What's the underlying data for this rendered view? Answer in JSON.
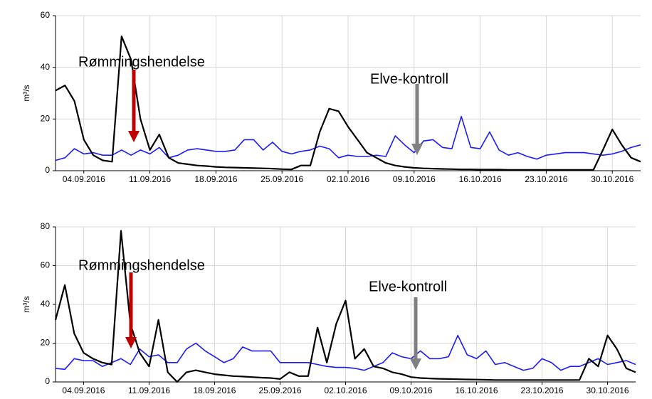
{
  "chart_data": [
    {
      "type": "line",
      "ylabel": "m³/s",
      "x": [
        "2016-09-01",
        "2016-09-02",
        "2016-09-03",
        "2016-09-04",
        "2016-09-05",
        "2016-09-06",
        "2016-09-07",
        "2016-09-08",
        "2016-09-09",
        "2016-09-10",
        "2016-09-11",
        "2016-09-12",
        "2016-09-13",
        "2016-09-14",
        "2016-09-15",
        "2016-09-16",
        "2016-09-17",
        "2016-09-18",
        "2016-09-19",
        "2016-09-20",
        "2016-09-21",
        "2016-09-22",
        "2016-09-23",
        "2016-09-24",
        "2016-09-25",
        "2016-09-26",
        "2016-09-27",
        "2016-09-28",
        "2016-09-29",
        "2016-09-30",
        "2016-10-01",
        "2016-10-02",
        "2016-10-03",
        "2016-10-04",
        "2016-10-05",
        "2016-10-06",
        "2016-10-07",
        "2016-10-08",
        "2016-10-09",
        "2016-10-10",
        "2016-10-11",
        "2016-10-12",
        "2016-10-13",
        "2016-10-14",
        "2016-10-15",
        "2016-10-16",
        "2016-10-17",
        "2016-10-18",
        "2016-10-19",
        "2016-10-20",
        "2016-10-21",
        "2016-10-22",
        "2016-10-23",
        "2016-10-24",
        "2016-10-25",
        "2016-10-26",
        "2016-10-27",
        "2016-10-28",
        "2016-10-29",
        "2016-10-30",
        "2016-10-31",
        "2016-11-01",
        "2016-11-02"
      ],
      "series": [
        {
          "color": "#000000",
          "values": [
            31,
            33,
            27,
            12,
            6,
            4,
            3.5,
            52,
            43,
            20,
            8,
            14,
            5,
            3,
            2.5,
            2,
            1.8,
            1.5,
            1.3,
            1.2,
            1.1,
            1,
            0.9,
            0.8,
            0.6,
            0.5,
            2,
            2,
            15,
            24,
            23,
            17,
            12,
            7,
            5,
            3,
            2,
            1.5,
            1.1,
            0.9,
            0.8,
            0.7,
            0.6,
            0.5,
            0.5,
            0.4,
            0.4,
            0.4,
            0.3,
            0.3,
            0.3,
            0.3,
            0.3,
            0.3,
            0.3,
            0.3,
            0.3,
            0.3,
            8,
            16,
            10,
            5,
            3.5
          ]
        },
        {
          "color": "#1a1aff",
          "values": [
            4,
            5,
            8.5,
            6.5,
            7,
            6,
            6,
            8,
            6,
            8,
            6.5,
            9,
            5,
            6,
            8,
            8.5,
            8,
            7.5,
            7.5,
            8,
            12,
            12,
            8,
            11,
            7.5,
            6.5,
            7.5,
            8,
            9.5,
            8.5,
            5,
            6,
            5.5,
            5.5,
            6,
            5.5,
            13.5,
            10,
            7,
            11.5,
            12,
            9,
            8.5,
            21,
            9,
            8.5,
            15,
            8,
            6,
            7,
            5.5,
            4.5,
            6,
            6.5,
            7,
            7,
            7,
            6.5,
            6,
            6.5,
            7.5,
            9,
            10
          ]
        }
      ],
      "xlim": [
        "2016-09-01",
        "2016-11-02"
      ],
      "xticks": [
        {
          "value": "2016-09-04",
          "label": "04.09.2016"
        },
        {
          "value": "2016-09-11",
          "label": "11.09.2016"
        },
        {
          "value": "2016-09-18",
          "label": "18.09.2016"
        },
        {
          "value": "2016-09-25",
          "label": "25.09.2016"
        },
        {
          "value": "2016-10-02",
          "label": "02.10.2016"
        },
        {
          "value": "2016-10-09",
          "label": "09.10.2016"
        },
        {
          "value": "2016-10-16",
          "label": "16.10.2016"
        },
        {
          "value": "2016-10-23",
          "label": "23.10.2016"
        },
        {
          "value": "2016-10-30",
          "label": "30.10.2016"
        }
      ],
      "ylim": [
        0,
        60
      ],
      "yticks": [
        0,
        20,
        40,
        60
      ],
      "grid": true,
      "annotations": [
        {
          "text": "Rømmingshendelse"
        },
        {
          "text": "Elve-kontroll"
        }
      ]
    },
    {
      "type": "line",
      "ylabel": "m³/s",
      "x": [
        "2016-09-01",
        "2016-09-02",
        "2016-09-03",
        "2016-09-04",
        "2016-09-05",
        "2016-09-06",
        "2016-09-07",
        "2016-09-08",
        "2016-09-09",
        "2016-09-10",
        "2016-09-11",
        "2016-09-12",
        "2016-09-13",
        "2016-09-14",
        "2016-09-15",
        "2016-09-16",
        "2016-09-17",
        "2016-09-18",
        "2016-09-19",
        "2016-09-20",
        "2016-09-21",
        "2016-09-22",
        "2016-09-23",
        "2016-09-24",
        "2016-09-25",
        "2016-09-26",
        "2016-09-27",
        "2016-09-28",
        "2016-09-29",
        "2016-09-30",
        "2016-10-01",
        "2016-10-02",
        "2016-10-03",
        "2016-10-04",
        "2016-10-05",
        "2016-10-06",
        "2016-10-07",
        "2016-10-08",
        "2016-10-09",
        "2016-10-10",
        "2016-10-11",
        "2016-10-12",
        "2016-10-13",
        "2016-10-14",
        "2016-10-15",
        "2016-10-16",
        "2016-10-17",
        "2016-10-18",
        "2016-10-19",
        "2016-10-20",
        "2016-10-21",
        "2016-10-22",
        "2016-10-23",
        "2016-10-24",
        "2016-10-25",
        "2016-10-26",
        "2016-10-27",
        "2016-10-28",
        "2016-10-29",
        "2016-10-30",
        "2016-10-31",
        "2016-11-01",
        "2016-11-02"
      ],
      "series": [
        {
          "color": "#000000",
          "values": [
            32,
            50,
            25,
            15,
            12,
            10,
            9,
            78,
            30,
            15,
            8,
            32,
            5,
            0,
            5,
            6,
            5,
            4,
            3.5,
            3,
            2.8,
            2.5,
            2.2,
            2,
            1.5,
            5,
            3,
            3,
            28,
            10,
            30,
            42,
            12,
            17,
            8,
            7,
            5,
            4,
            2.5,
            2,
            1.8,
            1.6,
            1.5,
            1.4,
            1.3,
            1.2,
            1.1,
            1,
            1,
            1,
            1,
            1,
            1,
            1,
            1,
            1,
            1,
            12,
            8,
            24,
            17,
            7,
            5
          ]
        },
        {
          "color": "#1a1aff",
          "values": [
            7,
            6.5,
            12,
            11,
            11,
            8,
            10,
            12,
            9,
            17,
            13,
            14,
            10,
            10,
            17,
            20,
            16,
            13,
            10,
            12,
            18,
            16,
            16,
            16,
            10,
            10,
            10,
            10,
            9,
            8,
            7.5,
            7.5,
            7,
            6,
            8,
            10,
            15,
            13,
            12,
            16,
            12,
            12,
            13,
            24,
            14,
            12,
            16,
            9,
            10,
            8,
            6,
            7,
            12,
            10,
            6,
            8,
            8,
            10,
            12,
            9,
            10,
            11,
            9
          ]
        }
      ],
      "xlim": [
        "2016-09-01",
        "2016-11-02"
      ],
      "xticks": [
        {
          "value": "2016-09-04",
          "label": "04.09.2016"
        },
        {
          "value": "2016-09-11",
          "label": "11.09.2016"
        },
        {
          "value": "2016-09-18",
          "label": "18.09.2016"
        },
        {
          "value": "2016-09-25",
          "label": "25.09.2016"
        },
        {
          "value": "2016-10-02",
          "label": "02.10.2016"
        },
        {
          "value": "2016-10-09",
          "label": "09.10.2016"
        },
        {
          "value": "2016-10-16",
          "label": "16.10.2016"
        },
        {
          "value": "2016-10-23",
          "label": "23.10.2016"
        },
        {
          "value": "2016-10-30",
          "label": "30.10.2016"
        }
      ],
      "ylim": [
        0,
        80
      ],
      "yticks": [
        0,
        20,
        40,
        60,
        80
      ],
      "grid": true,
      "annotations": [
        {
          "text": "Rømmingshendelse"
        },
        {
          "text": "Elve-kontroll"
        }
      ]
    }
  ]
}
